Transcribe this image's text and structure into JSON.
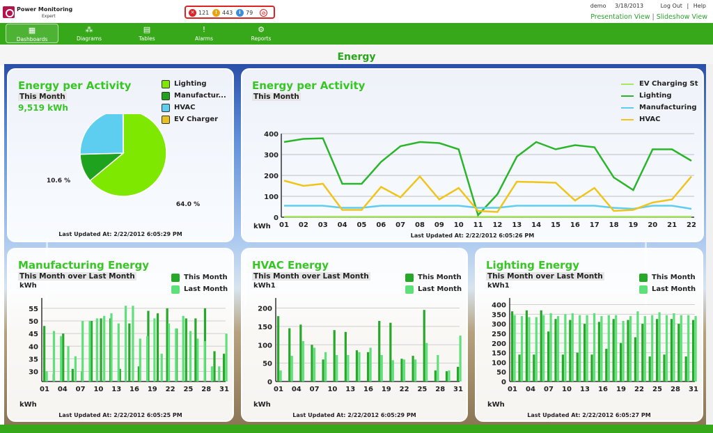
{
  "app": {
    "name": "Power Monitoring",
    "edition": "Expert"
  },
  "alerts": {
    "errors": "121",
    "warnings": "443",
    "info": "79"
  },
  "user": {
    "name": "demo",
    "date": "3/18/2013",
    "logout": "Log Out",
    "help": "Help"
  },
  "views": {
    "presentation": "Presentation View",
    "separator": "|",
    "slideshow": "Slideshow View"
  },
  "nav": [
    {
      "label": "Dashboards",
      "icon": "dashboard-icon"
    },
    {
      "label": "Diagrams",
      "icon": "diagram-icon"
    },
    {
      "label": "Tables",
      "icon": "table-icon"
    },
    {
      "label": "Alarms",
      "icon": "alarm-icon"
    },
    {
      "label": "Reports",
      "icon": "report-icon"
    }
  ],
  "page": {
    "title": "Energy"
  },
  "colors": {
    "lighting": "#7fe800",
    "manufacturing": "#1fa31f",
    "hvac": "#5dcdf0",
    "ev": "#e8c21c",
    "this_month": "#27a82a",
    "last_month": "#5ee07a"
  },
  "panels": {
    "pie": {
      "title": "Energy per Activity",
      "subtitle": "This Month",
      "total": "9,519 kWh",
      "updated": "Last Updated At: 2/22/2012 6:05:29 PM",
      "legend": [
        "Lighting",
        "Manufactur...",
        "HVAC",
        "EV Charger"
      ]
    },
    "line": {
      "title": "Energy per Activity",
      "subtitle": "This Month",
      "unit": "kWh",
      "updated": "Last Updated At: 2/22/2012 6:05:26 PM",
      "legend": [
        "EV Charging St",
        "Lighting",
        "Manufacturing",
        "HVAC"
      ]
    },
    "mfg": {
      "title": "Manufacturing Energy",
      "subtitle": "This Month over Last Month",
      "unit_top": "kWh",
      "unit_bottom": "kWh",
      "updated": "Last Updated At: 2/22/2012 6:05:25 PM",
      "legend": [
        "This Month",
        "Last Month"
      ]
    },
    "hvac": {
      "title": "HVAC Energy",
      "subtitle": "This Month over Last Month",
      "unit_top": "kWh1",
      "unit_bottom": "kWh",
      "updated": "Last Updated At: 2/22/2012 6:05:29 PM",
      "legend": [
        "This Month",
        "Last Month"
      ]
    },
    "light": {
      "title": "Lighting Energy",
      "subtitle": "This Month over Last Month",
      "unit_top": "kWh1",
      "unit_bottom": "kWh",
      "updated": "Last Updated At: 2/22/2012 6:05:27 PM",
      "legend": [
        "This Month",
        "Last Month"
      ]
    }
  },
  "chart_data": [
    {
      "type": "pie",
      "title": "Energy per Activity",
      "labels": [
        "Lighting",
        "Manufacturing",
        "HVAC",
        "EV Charger"
      ],
      "values": [
        64.0,
        10.6,
        25.3,
        0.1
      ],
      "value_labels": [
        "64.0 %",
        "10.6 %",
        "25.3 %",
        "0.1 %"
      ]
    },
    {
      "type": "line",
      "title": "Energy per Activity",
      "ylabel": "kWh",
      "x": [
        "01",
        "02",
        "03",
        "04",
        "05",
        "06",
        "07",
        "08",
        "09",
        "10",
        "11",
        "12",
        "13",
        "14",
        "15",
        "16",
        "17",
        "18",
        "19",
        "20",
        "21",
        "22"
      ],
      "ylim": [
        0,
        400
      ],
      "yticks": [
        0,
        100,
        200,
        300,
        400
      ],
      "series": [
        {
          "name": "EV Charging St",
          "color": "#a6e85a",
          "values": [
            2,
            2,
            2,
            2,
            2,
            2,
            2,
            2,
            2,
            2,
            2,
            2,
            2,
            2,
            2,
            2,
            2,
            2,
            2,
            2,
            2,
            2
          ]
        },
        {
          "name": "Lighting",
          "color": "#2bb52b",
          "values": [
            360,
            375,
            378,
            160,
            160,
            265,
            340,
            360,
            355,
            325,
            10,
            110,
            290,
            360,
            325,
            345,
            335,
            190,
            130,
            325,
            325,
            270
          ]
        },
        {
          "name": "Manufacturing",
          "color": "#5dcdf0",
          "values": [
            55,
            55,
            55,
            45,
            45,
            55,
            55,
            55,
            55,
            55,
            45,
            45,
            55,
            55,
            55,
            55,
            55,
            45,
            40,
            55,
            55,
            40
          ]
        },
        {
          "name": "HVAC",
          "color": "#f0c419",
          "values": [
            175,
            150,
            160,
            35,
            35,
            145,
            95,
            195,
            85,
            140,
            30,
            25,
            170,
            168,
            165,
            80,
            140,
            30,
            35,
            70,
            85,
            195
          ]
        }
      ]
    },
    {
      "type": "bar",
      "title": "Manufacturing Energy",
      "ylabel": "kWh",
      "xticks": [
        "01",
        "04",
        "07",
        "10",
        "13",
        "16",
        "19",
        "22",
        "25",
        "28",
        "31"
      ],
      "ylim": [
        26,
        58
      ],
      "yticks": [
        30,
        35,
        40,
        45,
        50,
        55
      ],
      "series": [
        {
          "name": "This Month",
          "values": [
            48,
            29,
            45,
            31,
            30,
            50,
            51,
            51,
            31,
            49,
            32,
            54,
            53,
            55,
            47,
            51,
            51,
            55,
            38,
            37
          ]
        },
        {
          "name": "Last Month",
          "values": [
            30,
            46,
            44,
            40,
            36,
            50,
            50,
            51,
            52,
            53,
            49,
            56,
            56,
            43,
            44,
            51,
            37,
            49,
            47,
            52,
            46,
            43,
            42,
            32,
            32,
            45
          ]
        }
      ]
    },
    {
      "type": "bar",
      "title": "HVAC Energy",
      "ylabel": "kWh1",
      "xticks": [
        "01",
        "04",
        "07",
        "10",
        "13",
        "16",
        "19",
        "22",
        "25",
        "28",
        "31"
      ],
      "ylim": [
        0,
        220
      ],
      "yticks": [
        0,
        50,
        100,
        150,
        200
      ],
      "series": [
        {
          "name": "This Month",
          "values": [
            178,
            145,
            155,
            100,
            60,
            140,
            135,
            85,
            80,
            165,
            160,
            62,
            70,
            195,
            30,
            28,
            40
          ]
        },
        {
          "name": "Last Month",
          "values": [
            30,
            70,
            110,
            92,
            80,
            72,
            72,
            80,
            92,
            72,
            58,
            60,
            60,
            105,
            72,
            30,
            125
          ]
        }
      ]
    },
    {
      "type": "bar",
      "title": "Lighting Energy",
      "ylabel": "kWh1",
      "xticks": [
        "01",
        "04",
        "07",
        "10",
        "13",
        "16",
        "19",
        "22",
        "25",
        "28",
        "31"
      ],
      "ylim": [
        0,
        420
      ],
      "yticks": [
        0,
        50,
        100,
        150,
        200,
        250,
        300,
        350,
        400
      ],
      "series": [
        {
          "name": "This Month",
          "values": [
            365,
            140,
            370,
            140,
            370,
            260,
            325,
            140,
            320,
            150,
            300,
            140,
            310,
            170,
            325,
            200,
            320,
            230,
            300,
            130,
            325,
            140,
            325,
            300,
            130,
            320
          ]
        },
        {
          "name": "Last Month",
          "values": [
            345,
            340,
            335,
            335,
            345,
            355,
            340,
            350,
            355,
            345,
            345,
            355,
            340,
            345,
            345,
            315,
            340,
            365,
            340,
            345,
            360,
            345,
            355,
            345,
            345,
            340
          ]
        }
      ]
    }
  ]
}
